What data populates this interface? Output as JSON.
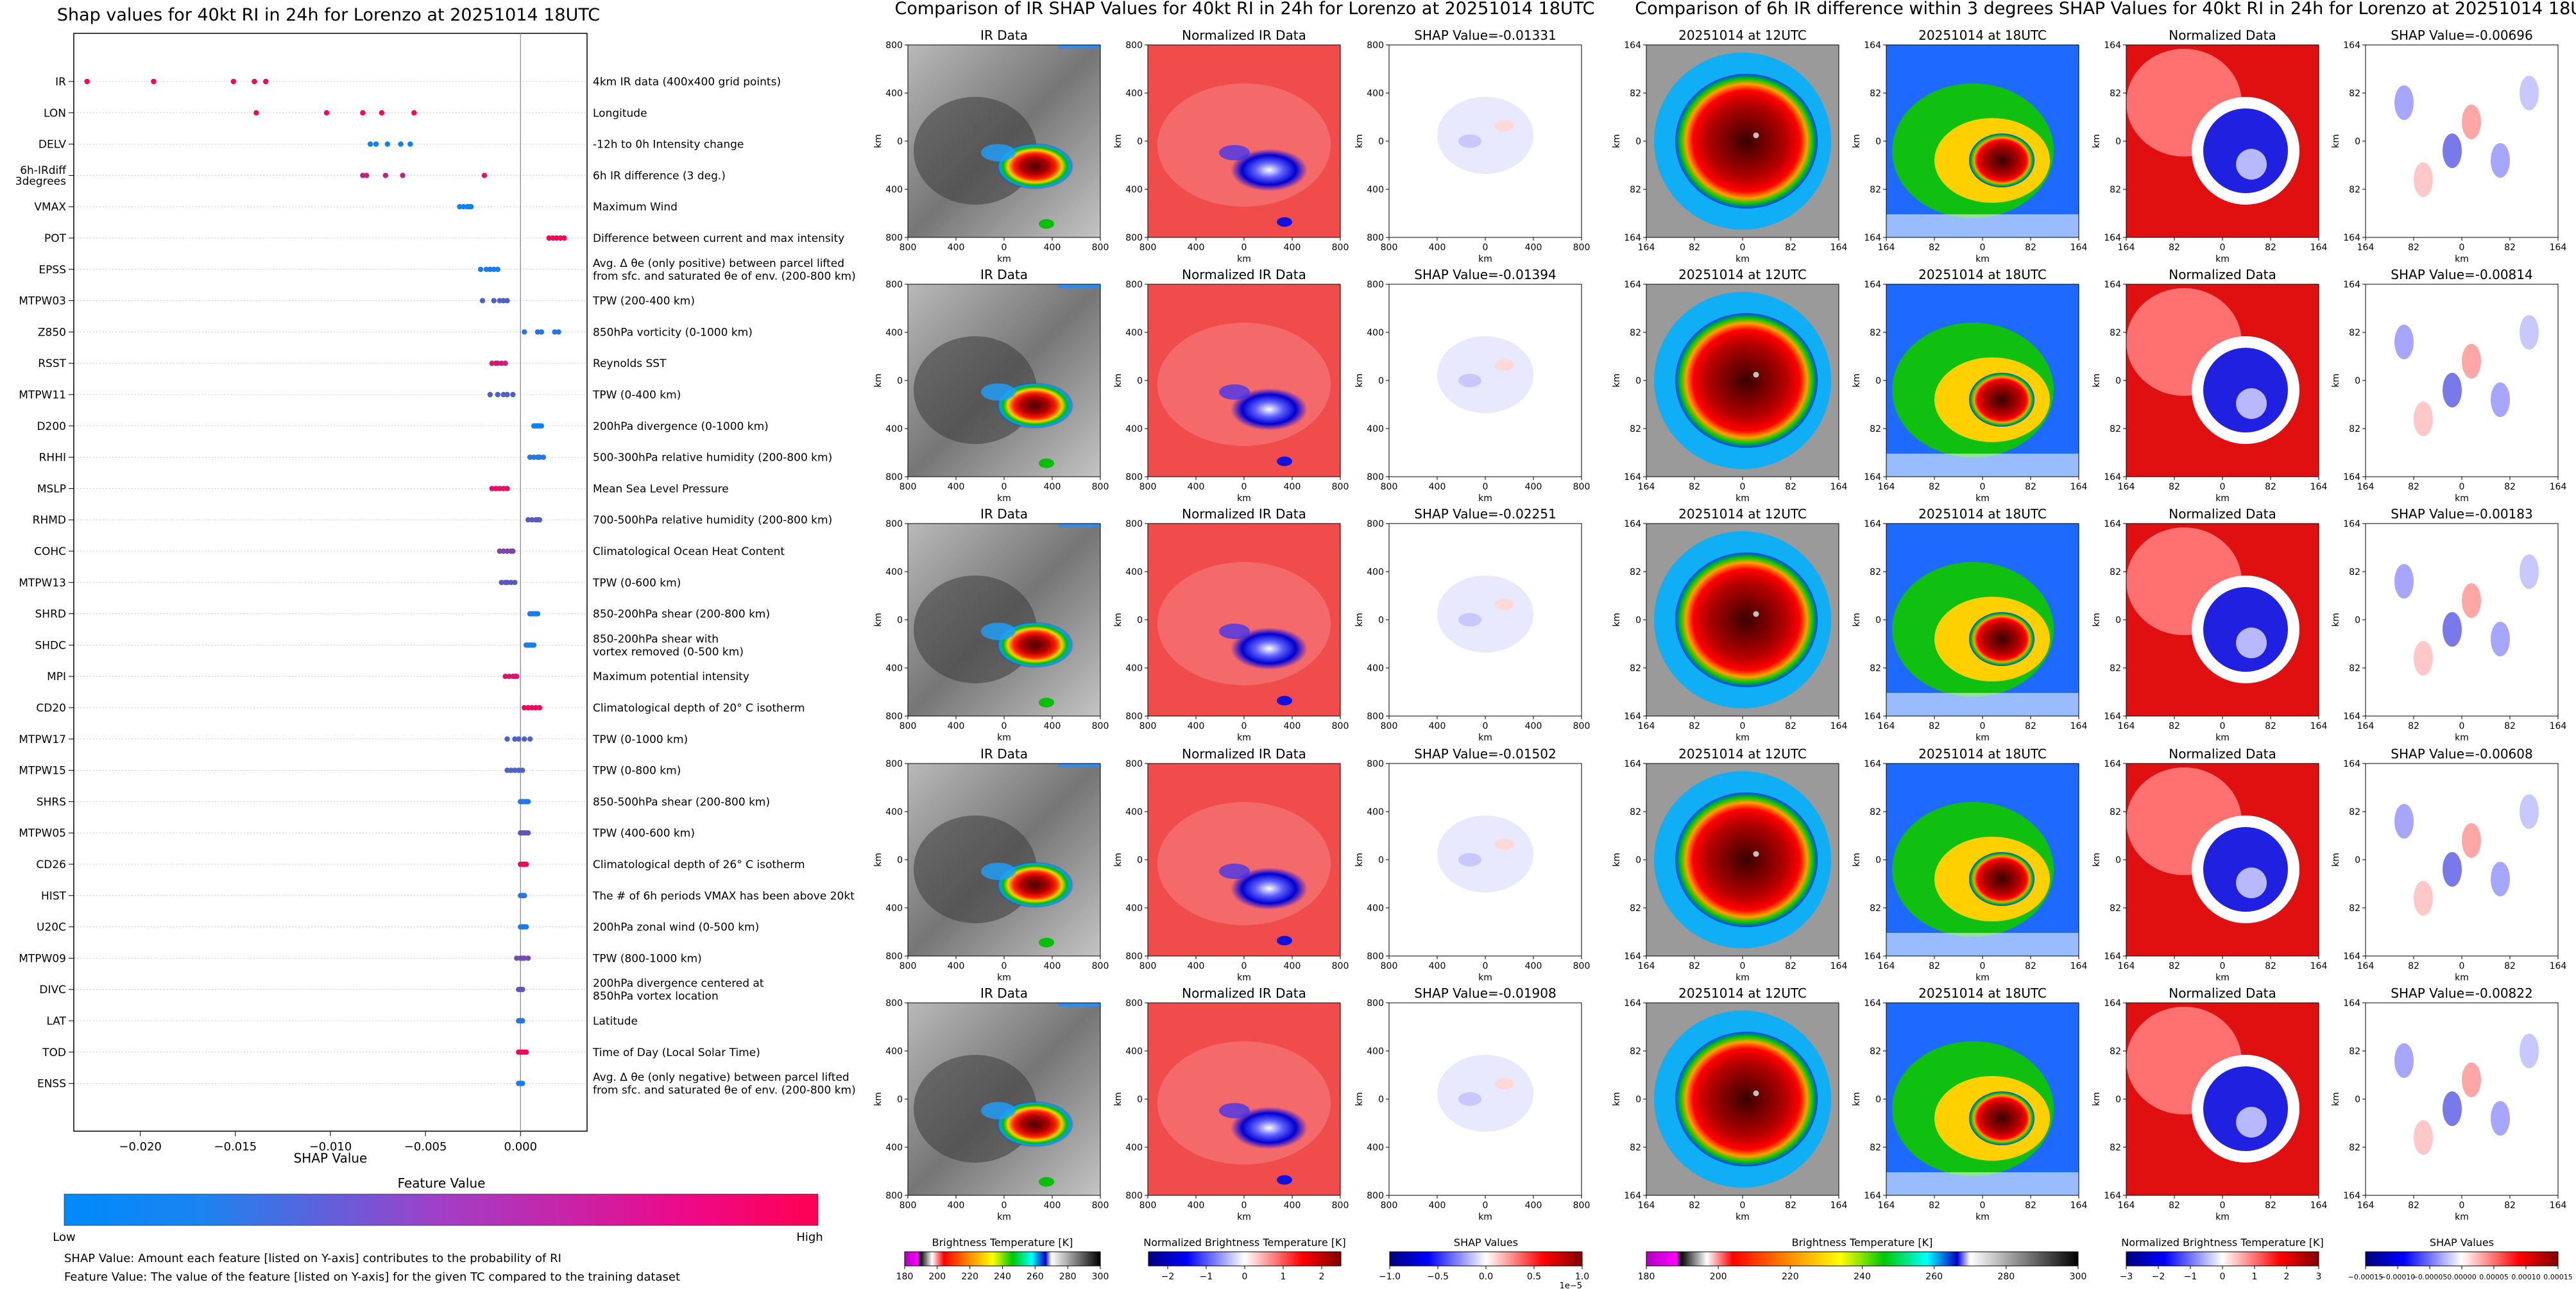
{
  "left_panel": {
    "title": "Shap values for 40kt RI in 24h for Lorenzo at 20251014 18UTC",
    "xlabel": "SHAP Value",
    "colorbar_title": "Feature Value",
    "colorbar_low": "Low",
    "colorbar_high": "High",
    "note1": "SHAP Value: Amount each feature [listed on Y-axis] contributes to the probability of RI",
    "note2": "Feature Value: The value of the feature [listed on Y-axis] for the given TC compared to the training dataset"
  },
  "middle_panel": {
    "title": "Comparison of IR SHAP Values for 40kt RI in 24h for Lorenzo at 20251014 18UTC",
    "col_titles": [
      "IR Data",
      "Normalized IR Data"
    ],
    "shap_titles": [
      "SHAP Value=-0.01331",
      "SHAP Value=-0.01394",
      "SHAP Value=-0.02251",
      "SHAP Value=-0.01502",
      "SHAP Value=-0.01908"
    ],
    "axis_label": "km",
    "y_ticks": [
      "800",
      "400",
      "0",
      "400",
      "800"
    ],
    "x_ticks": [
      "800",
      "400",
      "0",
      "400",
      "800"
    ],
    "cb1_label": "Brightness Temperature [K]",
    "cb1_ticks": [
      "180",
      "200",
      "220",
      "240",
      "260",
      "280",
      "300"
    ],
    "cb2_label": "Normalized Brightness Temperature [K]",
    "cb2_ticks": [
      "−2",
      "−1",
      "0",
      "1",
      "2"
    ],
    "cb3_label": "SHAP Values",
    "cb3_ticks": [
      "−1.0",
      "−0.5",
      "0.0",
      "0.5",
      "1.0"
    ],
    "cb3_exponent": "1e−5"
  },
  "right_panel": {
    "title": "Comparison of 6h IR difference within 3 degrees SHAP Values for 40kt RI in 24h for Lorenzo at 20251014 18UTC",
    "col_titles": [
      "20251014 at 12UTC",
      "20251014 at 18UTC",
      "Normalized Data"
    ],
    "shap_titles": [
      "SHAP Value=-0.00696",
      "SHAP Value=-0.00814",
      "SHAP Value=-0.00183",
      "SHAP Value=-0.00608",
      "SHAP Value=-0.00822"
    ],
    "axis_label": "km",
    "y_ticks": [
      "164",
      "82",
      "0",
      "82",
      "164"
    ],
    "x_ticks": [
      "164",
      "82",
      "0",
      "82",
      "164"
    ],
    "cb1_label": "Brightness Temperature [K]",
    "cb1_ticks": [
      "180",
      "200",
      "220",
      "240",
      "260",
      "280",
      "300"
    ],
    "cb2_label": "Normalized Brightness Temperature [K]",
    "cb2_ticks": [
      "−3",
      "−2",
      "−1",
      "0",
      "1",
      "2",
      "3"
    ],
    "cb3_label": "SHAP Values",
    "cb3_ticks": [
      "−0.00015",
      "−0.00010",
      "−0.00005",
      "0.00000",
      "0.00005",
      "0.00010",
      "0.00015"
    ]
  },
  "chart_data": [
    {
      "type": "scatter",
      "title": "Shap values for 40kt RI in 24h for Lorenzo at 20251014 18UTC",
      "xlabel": "SHAP Value",
      "xlim": [
        -0.0235,
        0.0035
      ],
      "x_ticks": [
        -0.02,
        -0.015,
        -0.01,
        -0.005,
        0.0
      ],
      "x_tick_labels": [
        "−0.020",
        "−0.015",
        "−0.010",
        "−0.005",
        "0.000"
      ],
      "color_scale": [
        "#008afb",
        "#ff0052"
      ],
      "features": [
        {
          "name": "IR",
          "desc": "4km IR data (400x400 grid points)",
          "shap": [
            -0.0228,
            -0.0193,
            -0.0151,
            -0.014,
            -0.0134
          ],
          "fv": [
            1,
            1,
            1,
            1,
            1
          ]
        },
        {
          "name": "LON",
          "desc": "Longitude",
          "shap": [
            -0.0139,
            -0.0102,
            -0.0083,
            -0.0073,
            -0.0056
          ],
          "fv": [
            1,
            1,
            1,
            1,
            1
          ]
        },
        {
          "name": "DELV",
          "desc": "-12h to 0h Intensity change",
          "shap": [
            -0.0079,
            -0.0076,
            -0.007,
            -0.0063,
            -0.0058
          ],
          "fv": [
            0.05,
            0.05,
            0.05,
            0.05,
            0.05
          ]
        },
        {
          "name": "6h-IRdiff\n3degrees",
          "desc": "6h IR difference (3 deg.)",
          "shap": [
            -0.0083,
            -0.0081,
            -0.0071,
            -0.0062,
            -0.0019
          ],
          "fv": [
            0.75,
            0.75,
            0.75,
            0.75,
            0.9
          ]
        },
        {
          "name": "VMAX",
          "desc": "Maximum Wind",
          "shap": [
            -0.0032,
            -0.003,
            -0.0028,
            -0.0027,
            -0.0026
          ],
          "fv": [
            0.05,
            0.05,
            0.05,
            0.05,
            0.05
          ]
        },
        {
          "name": "POT",
          "desc": "Difference between current and max intensity",
          "shap": [
            0.0015,
            0.0017,
            0.0019,
            0.0021,
            0.0023
          ],
          "fv": [
            0.95,
            0.95,
            0.95,
            0.95,
            0.95
          ]
        },
        {
          "name": "EPSS",
          "desc": "Avg. Δ θe (only positive) between parcel lifted\nfrom sfc. and saturated θe of env. (200-800 km)",
          "shap": [
            -0.0021,
            -0.0018,
            -0.0016,
            -0.0014,
            -0.0012
          ],
          "fv": [
            0.1,
            0.1,
            0.1,
            0.1,
            0.1
          ]
        },
        {
          "name": "MTPW03",
          "desc": "TPW (200-400 km)",
          "shap": [
            -0.002,
            -0.0014,
            -0.0011,
            -0.0009,
            -0.0007
          ],
          "fv": [
            0.3,
            0.3,
            0.3,
            0.3,
            0.3
          ]
        },
        {
          "name": "Z850",
          "desc": "850hPa vorticity (0-1000 km)",
          "shap": [
            0.0002,
            0.0009,
            0.0011,
            0.0018,
            0.002
          ],
          "fv": [
            0.15,
            0.15,
            0.15,
            0.15,
            0.15
          ]
        },
        {
          "name": "RSST",
          "desc": "Reynolds SST",
          "shap": [
            -0.0015,
            -0.0013,
            -0.0012,
            -0.001,
            -0.0008
          ],
          "fv": [
            0.8,
            0.8,
            0.8,
            0.8,
            0.8
          ]
        },
        {
          "name": "MTPW11",
          "desc": "TPW (0-400 km)",
          "shap": [
            -0.0016,
            -0.0012,
            -0.0009,
            -0.0007,
            -0.0004
          ],
          "fv": [
            0.3,
            0.3,
            0.3,
            0.3,
            0.3
          ]
        },
        {
          "name": "D200",
          "desc": "200hPa divergence (0-1000 km)",
          "shap": [
            0.0007,
            0.0008,
            0.0009,
            0.001,
            0.0011
          ],
          "fv": [
            0.05,
            0.05,
            0.05,
            0.05,
            0.05
          ]
        },
        {
          "name": "RHHI",
          "desc": "500-300hPa relative humidity (200-800 km)",
          "shap": [
            0.0005,
            0.0007,
            0.0009,
            0.001,
            0.0012
          ],
          "fv": [
            0.15,
            0.15,
            0.15,
            0.15,
            0.15
          ]
        },
        {
          "name": "MSLP",
          "desc": "Mean Sea Level Pressure",
          "shap": [
            -0.0015,
            -0.0013,
            -0.0011,
            -0.0009,
            -0.0007
          ],
          "fv": [
            0.9,
            0.9,
            0.9,
            0.9,
            0.9
          ]
        },
        {
          "name": "RHMD",
          "desc": "700-500hPa relative humidity (200-800 km)",
          "shap": [
            0.0004,
            0.0006,
            0.0008,
            0.0009,
            0.001
          ],
          "fv": [
            0.35,
            0.35,
            0.35,
            0.35,
            0.35
          ]
        },
        {
          "name": "COHC",
          "desc": "Climatological Ocean Heat Content",
          "shap": [
            -0.0011,
            -0.0009,
            -0.0007,
            -0.0005,
            -0.0004
          ],
          "fv": [
            0.5,
            0.5,
            0.5,
            0.5,
            0.5
          ]
        },
        {
          "name": "MTPW13",
          "desc": "TPW (0-600 km)",
          "shap": [
            -0.001,
            -0.0008,
            -0.0007,
            -0.0005,
            -0.0003
          ],
          "fv": [
            0.35,
            0.35,
            0.35,
            0.35,
            0.35
          ]
        },
        {
          "name": "SHRD",
          "desc": "850-200hPa shear (200-800 km)",
          "shap": [
            0.0005,
            0.0006,
            0.0007,
            0.0008,
            0.0009
          ],
          "fv": [
            0.1,
            0.1,
            0.1,
            0.1,
            0.1
          ]
        },
        {
          "name": "SHDC",
          "desc": "850-200hPa shear with\nvortex removed (0-500 km)",
          "shap": [
            0.0003,
            0.0004,
            0.0005,
            0.0006,
            0.0007
          ],
          "fv": [
            0.1,
            0.1,
            0.1,
            0.1,
            0.1
          ]
        },
        {
          "name": "MPI",
          "desc": "Maximum potential intensity",
          "shap": [
            -0.0008,
            -0.0006,
            -0.0004,
            -0.0003,
            -0.0002
          ],
          "fv": [
            0.85,
            0.85,
            0.85,
            0.85,
            0.85
          ]
        },
        {
          "name": "CD20",
          "desc": "Climatological depth of 20° C isotherm",
          "shap": [
            0.0002,
            0.0004,
            0.0006,
            0.0008,
            0.001
          ],
          "fv": [
            0.95,
            0.95,
            0.95,
            0.95,
            0.95
          ]
        },
        {
          "name": "MTPW17",
          "desc": "TPW (0-1000 km)",
          "shap": [
            -0.0007,
            -0.0003,
            -0.0001,
            0.0002,
            0.0005
          ],
          "fv": [
            0.3,
            0.3,
            0.3,
            0.3,
            0.3
          ]
        },
        {
          "name": "MTPW15",
          "desc": "TPW (0-800 km)",
          "shap": [
            -0.0007,
            -0.0005,
            -0.0003,
            -0.0001,
            0.0001
          ],
          "fv": [
            0.3,
            0.3,
            0.3,
            0.3,
            0.3
          ]
        },
        {
          "name": "SHRS",
          "desc": "850-500hPa shear (200-800 km)",
          "shap": [
            0.0,
            0.0001,
            0.0002,
            0.0003,
            0.0004
          ],
          "fv": [
            0.15,
            0.15,
            0.15,
            0.15,
            0.15
          ]
        },
        {
          "name": "MTPW05",
          "desc": "TPW (400-600 km)",
          "shap": [
            0.0,
            0.0001,
            0.0002,
            0.0003,
            0.0004
          ],
          "fv": [
            0.4,
            0.4,
            0.4,
            0.4,
            0.4
          ]
        },
        {
          "name": "CD26",
          "desc": "Climatological depth of 26° C isotherm",
          "shap": [
            0.0,
            0.0001,
            0.0002,
            0.0002,
            0.0003
          ],
          "fv": [
            0.95,
            0.95,
            0.95,
            0.95,
            0.95
          ]
        },
        {
          "name": "HIST",
          "desc": "The # of 6h periods VMAX has been above 20kt",
          "shap": [
            0.0,
            0.0001,
            0.0001,
            0.0002,
            0.0002
          ],
          "fv": [
            0.15,
            0.15,
            0.15,
            0.15,
            0.15
          ]
        },
        {
          "name": "U20C",
          "desc": "200hPa zonal wind (0-500 km)",
          "shap": [
            0.0,
            0.0001,
            0.0001,
            0.0002,
            0.0003
          ],
          "fv": [
            0.1,
            0.1,
            0.1,
            0.1,
            0.1
          ]
        },
        {
          "name": "MTPW09",
          "desc": "TPW (800-1000 km)",
          "shap": [
            -0.0002,
            0.0,
            0.0001,
            0.0002,
            0.0004
          ],
          "fv": [
            0.45,
            0.45,
            0.45,
            0.45,
            0.45
          ]
        },
        {
          "name": "DIVC",
          "desc": "200hPa divergence centered at\n850hPa vortex location",
          "shap": [
            -0.0001,
            0.0,
            0.0,
            0.0001,
            0.0001
          ],
          "fv": [
            0.4,
            0.4,
            0.4,
            0.4,
            0.4
          ]
        },
        {
          "name": "LAT",
          "desc": "Latitude",
          "shap": [
            -0.0001,
            0.0,
            0.0,
            0.0001,
            0.0001
          ],
          "fv": [
            0.15,
            0.15,
            0.15,
            0.15,
            0.15
          ]
        },
        {
          "name": "TOD",
          "desc": "Time of Day (Local Solar Time)",
          "shap": [
            -0.0001,
            0.0,
            0.0001,
            0.0002,
            0.0003
          ],
          "fv": [
            0.95,
            0.95,
            0.95,
            0.95,
            0.95
          ]
        },
        {
          "name": "ENSS",
          "desc": "Avg. Δ θe (only negative) between parcel lifted\nfrom sfc. and saturated θe of env. (200-800 km)",
          "shap": [
            -0.0001,
            0.0,
            0.0,
            0.0,
            0.0001
          ],
          "fv": [
            0.1,
            0.1,
            0.1,
            0.1,
            0.1
          ]
        }
      ]
    },
    {
      "type": "heatmap",
      "title": "Comparison of IR SHAP Values for 40kt RI in 24h for Lorenzo at 20251014 18UTC",
      "columns": [
        "IR Data",
        "Normalized IR Data",
        "SHAP Value"
      ],
      "shap_values": [
        -0.01331,
        -0.01394,
        -0.02251,
        -0.01502,
        -0.01908
      ],
      "xlim": [
        -800,
        800
      ],
      "ylim": [
        -800,
        800
      ],
      "xlabel": "km",
      "ylabel": "km"
    },
    {
      "type": "heatmap",
      "title": "Comparison of 6h IR difference within 3 degrees SHAP Values for 40kt RI in 24h for Lorenzo at 20251014 18UTC",
      "columns": [
        "20251014 at 12UTC",
        "20251014 at 18UTC",
        "Normalized Data",
        "SHAP Value"
      ],
      "shap_values": [
        -0.00696,
        -0.00814,
        -0.00183,
        -0.00608,
        -0.00822
      ],
      "xlim": [
        -164,
        164
      ],
      "ylim": [
        -164,
        164
      ],
      "xlabel": "km",
      "ylabel": "km"
    }
  ]
}
